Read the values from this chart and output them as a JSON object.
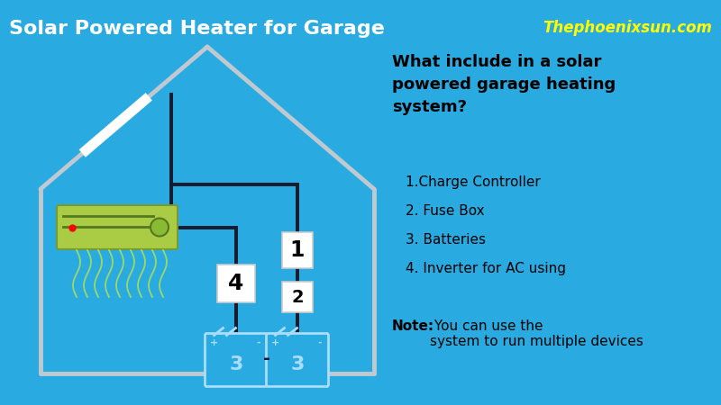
{
  "bg_color": "#29ABE2",
  "title": "Solar Powered Heater for Garage",
  "title_color": "#FFFFFF",
  "title_fontsize": 16,
  "watermark": "Thephoenixsun.com",
  "watermark_color": "#FFFF00",
  "watermark_fontsize": 12,
  "house_color": "#C0C8D0",
  "wire_color": "#1a1a2e",
  "solar_panel_color": "#AACC44",
  "question_text": "What include in a solar\npowered garage heating\nsystem?",
  "items": [
    "1.Charge Controller",
    "2. Fuse Box",
    "3. Batteries",
    "4. Inverter for AC using"
  ],
  "note_bold": "Note:",
  "note_rest": " You can use the\nsystem to run multiple devices",
  "heater_color": "#AACC44",
  "battery_edge_color": "#AADDFF",
  "battery_fill": "#29ABE2"
}
